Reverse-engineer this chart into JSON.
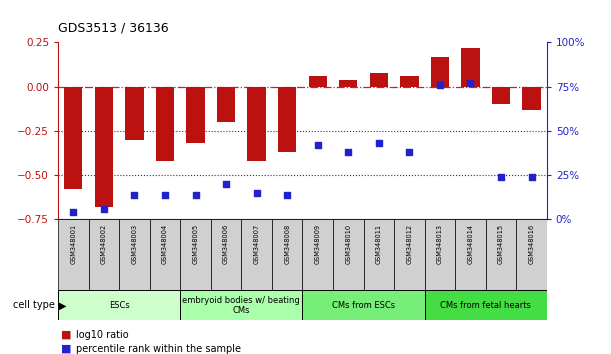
{
  "title": "GDS3513 / 36136",
  "samples": [
    "GSM348001",
    "GSM348002",
    "GSM348003",
    "GSM348004",
    "GSM348005",
    "GSM348006",
    "GSM348007",
    "GSM348008",
    "GSM348009",
    "GSM348010",
    "GSM348011",
    "GSM348012",
    "GSM348013",
    "GSM348014",
    "GSM348015",
    "GSM348016"
  ],
  "log10_ratio": [
    -0.58,
    -0.68,
    -0.3,
    -0.42,
    -0.32,
    -0.2,
    -0.42,
    -0.37,
    0.06,
    0.04,
    0.08,
    0.06,
    0.17,
    0.22,
    -0.1,
    -0.13
  ],
  "percentile_rank": [
    4,
    6,
    14,
    14,
    14,
    20,
    15,
    14,
    42,
    38,
    43,
    38,
    76,
    77,
    24,
    24
  ],
  "bar_color": "#bb1111",
  "dot_color": "#2222cc",
  "ylim_left": [
    -0.75,
    0.25
  ],
  "ylim_right": [
    0,
    100
  ],
  "yticks_left": [
    -0.75,
    -0.5,
    -0.25,
    0,
    0.25
  ],
  "yticks_right": [
    0,
    25,
    50,
    75,
    100
  ],
  "hline_color": "#cc2222",
  "dotted_line_color": "#333333",
  "cell_type_groups": [
    {
      "label": "ESCs",
      "start": 0,
      "end": 3,
      "color": "#ccffcc"
    },
    {
      "label": "embryoid bodies w/ beating\nCMs",
      "start": 4,
      "end": 7,
      "color": "#aaffaa"
    },
    {
      "label": "CMs from ESCs",
      "start": 8,
      "end": 11,
      "color": "#77ee77"
    },
    {
      "label": "CMs from fetal hearts",
      "start": 12,
      "end": 15,
      "color": "#44dd44"
    }
  ],
  "legend_red_label": "log10 ratio",
  "legend_blue_label": "percentile rank within the sample",
  "cell_type_label": "cell type"
}
